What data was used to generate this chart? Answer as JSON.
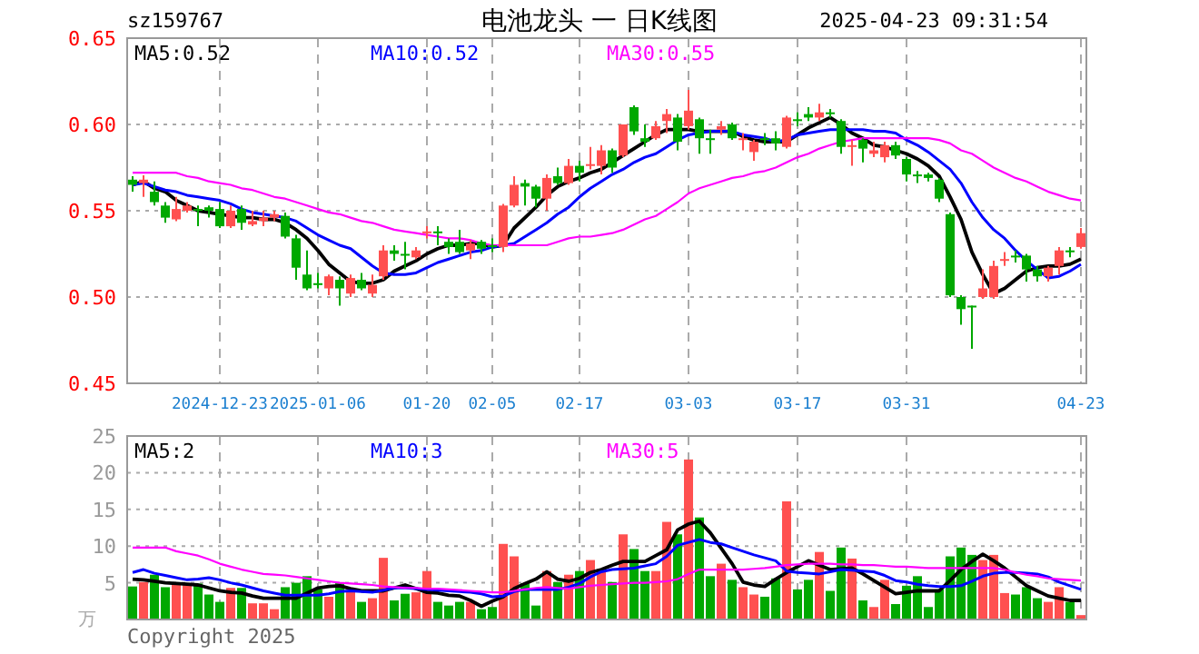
{
  "chart_data": [
    {
      "type": "candlestick",
      "title": "电池龙头 一 日K线图",
      "annotations": [
        "sz159767",
        "2025-04-23 09:31:54"
      ],
      "categories": [
        null,
        null,
        null,
        null,
        null,
        null,
        null,
        null,
        "2024-12-23",
        null,
        null,
        null,
        null,
        null,
        null,
        null,
        null,
        "2025-01-06",
        null,
        null,
        null,
        null,
        null,
        null,
        null,
        null,
        null,
        "01-20",
        null,
        null,
        null,
        null,
        null,
        "02-05",
        null,
        null,
        null,
        null,
        null,
        null,
        null,
        "02-17",
        null,
        null,
        null,
        null,
        null,
        null,
        null,
        null,
        null,
        "03-03",
        null,
        null,
        null,
        null,
        null,
        null,
        null,
        null,
        null,
        "03-17",
        null,
        null,
        null,
        null,
        null,
        null,
        null,
        null,
        null,
        "03-31",
        null,
        null,
        null,
        null,
        null,
        null,
        null,
        null,
        null,
        null,
        null,
        null,
        null,
        null,
        null,
        "04-23"
      ],
      "ohlc": [
        [
          0.568,
          0.57,
          0.561,
          0.565
        ],
        [
          0.566,
          0.5705,
          0.558,
          0.568
        ],
        [
          0.561,
          0.567,
          0.553,
          0.555
        ],
        [
          0.553,
          0.555,
          0.543,
          0.546
        ],
        [
          0.545,
          0.558,
          0.544,
          0.551
        ],
        [
          0.55,
          0.555,
          0.549,
          0.553
        ],
        [
          0.551,
          0.553,
          0.541,
          0.55
        ],
        [
          0.552,
          0.553,
          0.546,
          0.55
        ],
        [
          0.551,
          0.555,
          0.54,
          0.541
        ],
        [
          0.541,
          0.553,
          0.54,
          0.55
        ],
        [
          0.551,
          0.553,
          0.539,
          0.543
        ],
        [
          0.542,
          0.55,
          0.541,
          0.544
        ],
        [
          0.544,
          0.55,
          0.541,
          0.546
        ],
        [
          0.546,
          0.55,
          0.544,
          0.548
        ],
        [
          0.547,
          0.549,
          0.534,
          0.535
        ],
        [
          0.534,
          0.536,
          0.51,
          0.517
        ],
        [
          0.513,
          0.527,
          0.504,
          0.505
        ],
        [
          0.508,
          0.514,
          0.505,
          0.507
        ],
        [
          0.505,
          0.513,
          0.501,
          0.512
        ],
        [
          0.51,
          0.512,
          0.495,
          0.505
        ],
        [
          0.502,
          0.513,
          0.5,
          0.511
        ],
        [
          0.51,
          0.514,
          0.504,
          0.505
        ],
        [
          0.502,
          0.513,
          0.5,
          0.507
        ],
        [
          0.512,
          0.53,
          0.51,
          0.527
        ],
        [
          0.527,
          0.53,
          0.521,
          0.525
        ],
        [
          0.525,
          0.532,
          0.516,
          0.524
        ],
        [
          0.523,
          0.529,
          0.522,
          0.527
        ],
        [
          0.537,
          0.541,
          0.534,
          0.538
        ],
        [
          0.538,
          0.541,
          0.53,
          0.537
        ],
        [
          0.532,
          0.534,
          0.525,
          0.529
        ],
        [
          0.532,
          0.539,
          0.525,
          0.526
        ],
        [
          0.527,
          0.533,
          0.522,
          0.531
        ],
        [
          0.532,
          0.533,
          0.525,
          0.528
        ],
        [
          0.53,
          0.534,
          0.526,
          0.529
        ],
        [
          0.529,
          0.554,
          0.526,
          0.553
        ],
        [
          0.553,
          0.57,
          0.552,
          0.565
        ],
        [
          0.566,
          0.568,
          0.553,
          0.564
        ],
        [
          0.564,
          0.565,
          0.552,
          0.557
        ],
        [
          0.557,
          0.571,
          0.55,
          0.569
        ],
        [
          0.57,
          0.575,
          0.565,
          0.566
        ],
        [
          0.566,
          0.58,
          0.565,
          0.576
        ],
        [
          0.576,
          0.579,
          0.567,
          0.572
        ],
        [
          0.576,
          0.587,
          0.574,
          0.577
        ],
        [
          0.576,
          0.588,
          0.571,
          0.585
        ],
        [
          0.585,
          0.586,
          0.572,
          0.575
        ],
        [
          0.582,
          0.6,
          0.581,
          0.6
        ],
        [
          0.61,
          0.611,
          0.594,
          0.596
        ],
        [
          0.592,
          0.6,
          0.587,
          0.59
        ],
        [
          0.592,
          0.602,
          0.591,
          0.599
        ],
        [
          0.602,
          0.609,
          0.595,
          0.606
        ],
        [
          0.604,
          0.606,
          0.585,
          0.59
        ],
        [
          0.599,
          0.62,
          0.597,
          0.608
        ],
        [
          0.603,
          0.604,
          0.583,
          0.592
        ],
        [
          0.592,
          0.597,
          0.583,
          0.591
        ],
        [
          0.597,
          0.602,
          0.594,
          0.599
        ],
        [
          0.6,
          0.601,
          0.591,
          0.592
        ],
        [
          0.591,
          0.595,
          0.585,
          0.592
        ],
        [
          0.584,
          0.591,
          0.579,
          0.59
        ],
        [
          0.592,
          0.595,
          0.588,
          0.591
        ],
        [
          0.592,
          0.596,
          0.585,
          0.589
        ],
        [
          0.587,
          0.605,
          0.586,
          0.604
        ],
        [
          0.603,
          0.607,
          0.599,
          0.602
        ],
        [
          0.606,
          0.61,
          0.602,
          0.604
        ],
        [
          0.604,
          0.612,
          0.602,
          0.607
        ],
        [
          0.607,
          0.609,
          0.604,
          0.606
        ],
        [
          0.602,
          0.603,
          0.583,
          0.587
        ],
        [
          0.587,
          0.591,
          0.576,
          0.588
        ],
        [
          0.591,
          0.592,
          0.578,
          0.586
        ],
        [
          0.583,
          0.59,
          0.581,
          0.585
        ],
        [
          0.581,
          0.59,
          0.578,
          0.588
        ],
        [
          0.588,
          0.59,
          0.58,
          0.582
        ],
        [
          0.58,
          0.581,
          0.567,
          0.571
        ],
        [
          0.571,
          0.573,
          0.566,
          0.57
        ],
        [
          0.571,
          0.572,
          0.567,
          0.569
        ],
        [
          0.568,
          0.569,
          0.555,
          0.557
        ],
        [
          0.548,
          0.549,
          0.5,
          0.501
        ],
        [
          0.5,
          0.501,
          0.484,
          0.493
        ],
        [
          0.495,
          0.495,
          0.47,
          0.494
        ],
        [
          0.5,
          0.516,
          0.499,
          0.505
        ],
        [
          0.5,
          0.521,
          0.499,
          0.518
        ],
        [
          0.521,
          0.526,
          0.518,
          0.522
        ],
        [
          0.524,
          0.527,
          0.52,
          0.523
        ],
        [
          0.524,
          0.525,
          0.509,
          0.516
        ],
        [
          0.516,
          0.518,
          0.509,
          0.512
        ],
        [
          0.512,
          0.518,
          0.509,
          0.517
        ],
        [
          0.518,
          0.529,
          0.513,
          0.527
        ],
        [
          0.527,
          0.529,
          0.523,
          0.526
        ],
        [
          0.529,
          0.54,
          0.528,
          0.537
        ]
      ],
      "colors": [
        "#00a800",
        "#ff5050",
        "#00a800",
        "#00a800",
        "#ff5050",
        "#ff5050",
        "#00a800",
        "#00a800",
        "#00a800",
        "#ff5050",
        "#00a800",
        "#ff5050",
        "#ff5050",
        "#ff5050",
        "#00a800",
        "#00a800",
        "#00a800",
        "#00a800",
        "#ff5050",
        "#00a800",
        "#ff5050",
        "#00a800",
        "#ff5050",
        "#ff5050",
        "#00a800",
        "#00a800",
        "#ff5050",
        "#ff5050",
        "#00a800",
        "#00a800",
        "#00a800",
        "#ff5050",
        "#00a800",
        "#00a800",
        "#ff5050",
        "#ff5050",
        "#00a800",
        "#00a800",
        "#ff5050",
        "#00a800",
        "#ff5050",
        "#00a800",
        "#ff5050",
        "#ff5050",
        "#00a800",
        "#ff5050",
        "#00a800",
        "#00a800",
        "#ff5050",
        "#ff5050",
        "#00a800",
        "#ff5050",
        "#00a800",
        "#00a800",
        "#ff5050",
        "#00a800",
        "#ff5050",
        "#ff5050",
        "#00a800",
        "#00a800",
        "#ff5050",
        "#00a800",
        "#00a800",
        "#ff5050",
        "#00a800",
        "#00a800",
        "#ff5050",
        "#00a800",
        "#ff5050",
        "#ff5050",
        "#00a800",
        "#00a800",
        "#00a800",
        "#00a800",
        "#00a800",
        "#00a800",
        "#00a800",
        "#00a800",
        "#ff5050",
        "#ff5050",
        "#ff5050",
        "#00a800",
        "#00a800",
        "#00a800",
        "#ff5050",
        "#ff5050",
        "#00a800",
        "#ff5050"
      ],
      "series": [
        {
          "type": "line",
          "name": "MA5:0.52",
          "color": "#000000",
          "values": [
            0.565,
            0.567,
            0.563,
            0.561,
            0.556,
            0.553,
            0.55,
            0.549,
            0.548,
            0.547,
            0.546,
            0.546,
            0.545,
            0.545,
            0.543,
            0.539,
            0.534,
            0.527,
            0.519,
            0.514,
            0.509,
            0.508,
            0.508,
            0.51,
            0.515,
            0.518,
            0.521,
            0.525,
            0.528,
            0.53,
            0.53,
            0.531,
            0.531,
            0.529,
            0.53,
            0.54,
            0.546,
            0.552,
            0.559,
            0.564,
            0.567,
            0.569,
            0.572,
            0.574,
            0.578,
            0.582,
            0.586,
            0.59,
            0.594,
            0.597,
            0.597,
            0.597,
            0.596,
            0.596,
            0.596,
            0.596,
            0.593,
            0.591,
            0.59,
            0.59,
            0.59,
            0.594,
            0.598,
            0.601,
            0.604,
            0.6,
            0.595,
            0.592,
            0.588,
            0.587,
            0.585,
            0.583,
            0.58,
            0.576,
            0.57,
            0.558,
            0.545,
            0.526,
            0.513,
            0.502,
            0.505,
            0.51,
            0.515,
            0.517,
            0.518,
            0.518,
            0.519,
            0.522
          ]
        },
        {
          "type": "line",
          "name": "MA10:0.52",
          "color": "#0000ff",
          "values": [
            0.565,
            0.566,
            0.564,
            0.562,
            0.561,
            0.559,
            0.558,
            0.557,
            0.556,
            0.554,
            0.551,
            0.549,
            0.548,
            0.547,
            0.546,
            0.544,
            0.54,
            0.536,
            0.533,
            0.53,
            0.528,
            0.523,
            0.518,
            0.514,
            0.513,
            0.513,
            0.514,
            0.517,
            0.52,
            0.522,
            0.524,
            0.526,
            0.527,
            0.529,
            0.53,
            0.531,
            0.535,
            0.539,
            0.543,
            0.548,
            0.552,
            0.558,
            0.563,
            0.567,
            0.571,
            0.574,
            0.578,
            0.581,
            0.583,
            0.587,
            0.591,
            0.594,
            0.595,
            0.596,
            0.596,
            0.596,
            0.594,
            0.593,
            0.592,
            0.59,
            0.591,
            0.594,
            0.595,
            0.596,
            0.597,
            0.597,
            0.597,
            0.597,
            0.596,
            0.596,
            0.595,
            0.591,
            0.588,
            0.584,
            0.579,
            0.574,
            0.566,
            0.555,
            0.546,
            0.539,
            0.534,
            0.527,
            0.521,
            0.516,
            0.511,
            0.512,
            0.515,
            0.519
          ]
        },
        {
          "type": "line",
          "name": "MA30:0.55",
          "color": "#ff00ff",
          "values": [
            0.572,
            0.572,
            0.572,
            0.572,
            0.572,
            0.57,
            0.569,
            0.567,
            0.566,
            0.565,
            0.563,
            0.562,
            0.56,
            0.558,
            0.557,
            0.555,
            0.553,
            0.551,
            0.549,
            0.548,
            0.546,
            0.544,
            0.543,
            0.541,
            0.539,
            0.538,
            0.537,
            0.536,
            0.535,
            0.534,
            0.534,
            0.533,
            0.531,
            0.53,
            0.53,
            0.53,
            0.53,
            0.53,
            0.53,
            0.532,
            0.534,
            0.535,
            0.535,
            0.536,
            0.537,
            0.539,
            0.542,
            0.545,
            0.547,
            0.551,
            0.555,
            0.56,
            0.563,
            0.565,
            0.567,
            0.569,
            0.57,
            0.572,
            0.573,
            0.575,
            0.578,
            0.581,
            0.583,
            0.586,
            0.588,
            0.59,
            0.591,
            0.592,
            0.592,
            0.592,
            0.592,
            0.592,
            0.592,
            0.592,
            0.591,
            0.589,
            0.585,
            0.583,
            0.579,
            0.575,
            0.572,
            0.569,
            0.567,
            0.564,
            0.561,
            0.559,
            0.557,
            0.556
          ]
        }
      ],
      "ylim": [
        0.45,
        0.65
      ],
      "yticks": [
        0.45,
        {
          "value": 0.5,
          "label": "0.50"
        },
        0.55,
        {
          "value": 0.6,
          "label": "0.60"
        },
        0.65
      ],
      "grid": true,
      "legend": "top"
    },
    {
      "type": "bar",
      "ylabel": "万",
      "annotations": [
        "Copyright 2025"
      ],
      "categories": [
        null,
        null,
        null,
        null,
        null,
        null,
        null,
        null,
        null,
        null,
        null,
        null,
        null,
        null,
        null,
        null,
        null,
        null,
        null,
        null,
        null,
        null,
        null,
        null,
        null,
        null,
        null,
        null,
        null,
        null,
        null,
        null,
        null,
        null,
        null,
        null,
        null,
        null,
        null,
        null,
        null,
        null,
        null,
        null,
        null,
        null,
        null,
        null,
        null,
        null,
        null,
        null,
        null,
        null,
        null,
        null,
        null,
        null,
        null,
        null,
        null,
        null,
        null,
        null,
        null,
        null,
        null,
        null,
        null,
        null,
        null,
        null,
        null,
        null,
        null,
        null,
        null,
        null,
        null,
        null,
        null,
        null,
        null,
        null,
        null,
        null,
        null,
        null
      ],
      "values": [
        4.5,
        5.1,
        6.1,
        4.4,
        4.7,
        4.7,
        4.9,
        3.4,
        2.4,
        4.3,
        4.3,
        2.2,
        2.2,
        1.4,
        4.4,
        5.0,
        5.9,
        4.1,
        3.1,
        5.0,
        3.9,
        2.4,
        2.9,
        8.4,
        2.6,
        3.5,
        3.7,
        6.6,
        2.4,
        1.9,
        2.4,
        2.4,
        1.4,
        1.7,
        10.3,
        8.6,
        4.9,
        1.9,
        6.6,
        5.1,
        6.1,
        6.6,
        8.1,
        6.9,
        5.1,
        11.6,
        9.6,
        6.6,
        6.6,
        13.3,
        11.6,
        21.8,
        13.9,
        5.9,
        7.6,
        5.4,
        4.4,
        3.4,
        3.1,
        5.6,
        16.1,
        4.1,
        5.4,
        9.2,
        3.9,
        9.8,
        8.3,
        2.6,
        1.7,
        5.4,
        2.1,
        4.6,
        5.9,
        1.7,
        4.1,
        8.6,
        9.8,
        8.8,
        8.1,
        8.8,
        3.6,
        3.4,
        4.4,
        2.9,
        2.4,
        4.4,
        2.4,
        0.6
      ],
      "colors": [
        "#00a800",
        "#ff5050",
        "#00a800",
        "#00a800",
        "#ff5050",
        "#ff5050",
        "#00a800",
        "#00a800",
        "#00a800",
        "#ff5050",
        "#00a800",
        "#ff5050",
        "#ff5050",
        "#ff5050",
        "#00a800",
        "#00a800",
        "#00a800",
        "#00a800",
        "#ff5050",
        "#00a800",
        "#ff5050",
        "#00a800",
        "#ff5050",
        "#ff5050",
        "#00a800",
        "#00a800",
        "#ff5050",
        "#ff5050",
        "#00a800",
        "#00a800",
        "#00a800",
        "#ff5050",
        "#00a800",
        "#00a800",
        "#ff5050",
        "#ff5050",
        "#00a800",
        "#00a800",
        "#ff5050",
        "#00a800",
        "#ff5050",
        "#00a800",
        "#ff5050",
        "#ff5050",
        "#00a800",
        "#ff5050",
        "#00a800",
        "#00a800",
        "#ff5050",
        "#ff5050",
        "#00a800",
        "#ff5050",
        "#00a800",
        "#00a800",
        "#ff5050",
        "#00a800",
        "#ff5050",
        "#ff5050",
        "#00a800",
        "#00a800",
        "#ff5050",
        "#00a800",
        "#00a800",
        "#ff5050",
        "#00a800",
        "#00a800",
        "#ff5050",
        "#00a800",
        "#ff5050",
        "#ff5050",
        "#00a800",
        "#00a800",
        "#00a800",
        "#00a800",
        "#00a800",
        "#00a800",
        "#00a800",
        "#00a800",
        "#ff5050",
        "#ff5050",
        "#ff5050",
        "#00a800",
        "#00a800",
        "#00a800",
        "#ff5050",
        "#ff5050",
        "#00a800",
        "#ff5050"
      ],
      "series": [
        {
          "type": "line",
          "name": "MA5:2",
          "color": "#000000",
          "values": [
            5.5,
            5.4,
            5.2,
            5.0,
            4.9,
            4.8,
            4.7,
            4.3,
            3.9,
            3.7,
            3.6,
            3.2,
            2.9,
            2.9,
            2.9,
            2.9,
            3.6,
            4.3,
            4.5,
            4.6,
            4.2,
            3.9,
            3.9,
            3.9,
            4.3,
            4.7,
            4.2,
            3.7,
            3.6,
            3.3,
            3.2,
            2.6,
            1.8,
            2.5,
            3.1,
            4.2,
            4.9,
            5.5,
            6.5,
            5.5,
            5.2,
            5.6,
            6.4,
            6.8,
            7.4,
            7.9,
            7.9,
            7.9,
            8.7,
            9.5,
            12.2,
            13.0,
            13.4,
            11.8,
            9.7,
            7.6,
            5.1,
            4.7,
            4.5,
            5.5,
            6.4,
            7.2,
            8.0,
            7.4,
            6.8,
            6.9,
            7.0,
            6.2,
            5.3,
            4.4,
            3.5,
            3.7,
            3.9,
            3.9,
            3.9,
            5.3,
            6.8,
            7.9,
            8.9,
            8.0,
            7.0,
            5.8,
            4.6,
            3.9,
            3.2,
            2.9,
            2.6,
            2.6
          ]
        },
        {
          "type": "line",
          "name": "MA10:3",
          "color": "#0000ff",
          "values": [
            6.4,
            6.8,
            6.3,
            6.0,
            5.7,
            5.4,
            5.5,
            5.7,
            5.4,
            5.0,
            4.7,
            4.3,
            3.9,
            3.6,
            3.3,
            3.3,
            3.3,
            3.3,
            3.5,
            3.8,
            3.9,
            3.8,
            3.7,
            4.0,
            4.3,
            4.3,
            4.2,
            4.1,
            4.0,
            3.9,
            3.8,
            3.7,
            3.5,
            3.1,
            3.2,
            3.8,
            4.1,
            4.1,
            4.1,
            4.1,
            4.4,
            4.9,
            5.8,
            6.5,
            6.8,
            6.9,
            7.0,
            7.3,
            7.6,
            8.6,
            10.1,
            10.5,
            10.9,
            10.5,
            10.3,
            9.8,
            9.3,
            8.8,
            8.4,
            8.0,
            6.6,
            6.4,
            6.3,
            6.2,
            6.5,
            6.8,
            6.7,
            6.6,
            6.5,
            6.0,
            5.3,
            5.1,
            4.8,
            4.6,
            4.5,
            4.5,
            4.6,
            5.2,
            5.9,
            6.3,
            6.4,
            6.4,
            6.3,
            6.2,
            5.8,
            5.1,
            4.6,
            4.1
          ]
        },
        {
          "type": "line",
          "name": "MA30:5",
          "color": "#ff00ff",
          "values": [
            9.8,
            9.8,
            9.8,
            9.8,
            9.3,
            9.0,
            8.7,
            8.2,
            7.6,
            7.2,
            6.8,
            6.5,
            6.2,
            6.1,
            6.0,
            5.8,
            5.6,
            5.4,
            5.2,
            5.0,
            4.9,
            4.8,
            4.7,
            4.5,
            4.4,
            4.3,
            4.3,
            4.2,
            4.2,
            4.1,
            4.0,
            3.9,
            3.8,
            3.7,
            3.7,
            3.9,
            4.1,
            4.3,
            4.4,
            4.3,
            4.2,
            4.4,
            4.6,
            4.7,
            4.8,
            4.9,
            5.0,
            5.0,
            5.1,
            5.2,
            5.5,
            6.2,
            6.8,
            6.8,
            6.8,
            6.8,
            6.8,
            6.9,
            7.0,
            7.2,
            7.4,
            7.5,
            7.6,
            7.6,
            7.6,
            7.5,
            7.5,
            7.4,
            7.4,
            7.3,
            7.2,
            7.2,
            7.1,
            7.0,
            7.0,
            7.0,
            7.0,
            7.0,
            7.0,
            7.0,
            6.8,
            6.4,
            6.1,
            5.9,
            5.6,
            5.5,
            5.4,
            5.3
          ]
        }
      ],
      "ylim": [
        0,
        25
      ],
      "yticks": [
        5,
        10,
        15,
        20,
        25
      ],
      "grid": true,
      "legend": "top"
    }
  ]
}
